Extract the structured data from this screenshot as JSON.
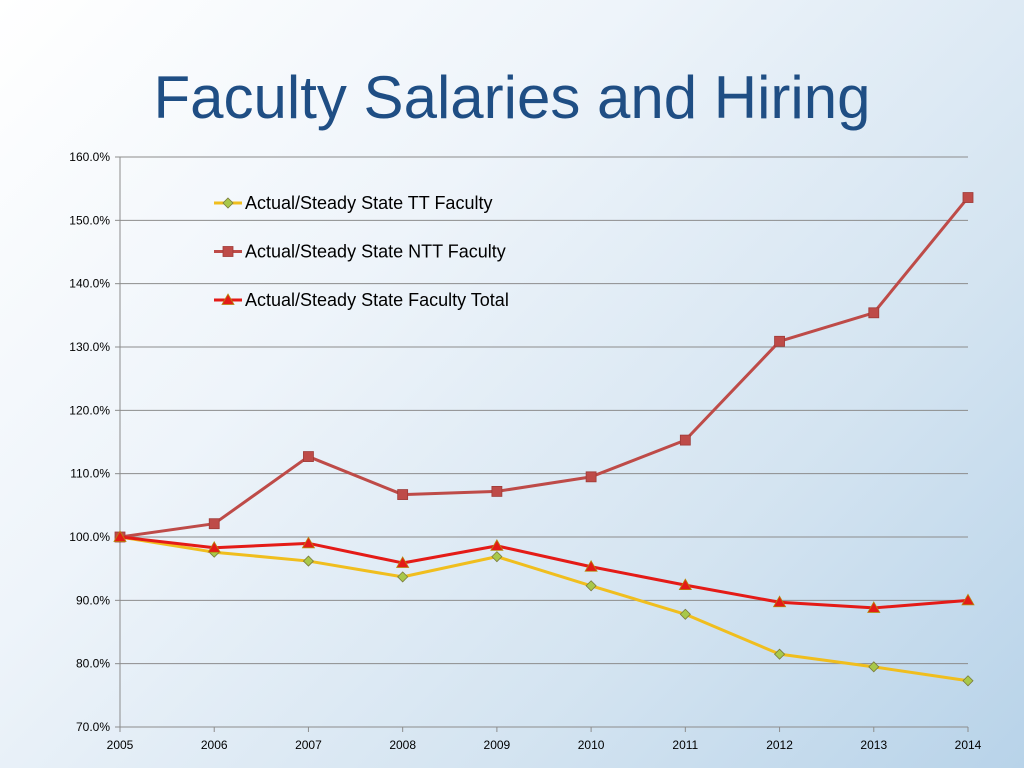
{
  "slide": {
    "title": "Faculty Salaries and Hiring"
  },
  "chart_data": {
    "type": "line",
    "title": "",
    "xlabel": "",
    "ylabel": "",
    "x": [
      "2005",
      "2006",
      "2007",
      "2008",
      "2009",
      "2010",
      "2011",
      "2012",
      "2013",
      "2014"
    ],
    "ylim": [
      70,
      160
    ],
    "y_ticks": [
      70,
      80,
      90,
      100,
      110,
      120,
      130,
      140,
      150,
      160
    ],
    "y_tick_labels": [
      "70.0%",
      "80.0%",
      "90.0%",
      "100.0%",
      "110.0%",
      "120.0%",
      "130.0%",
      "140.0%",
      "150.0%",
      "160.0%"
    ],
    "grid": true,
    "legend_position": "top-left-inside",
    "series": [
      {
        "name": "Actual/Steady State TT Faculty",
        "color": "#f0be1e",
        "marker": "diamond",
        "marker_fill": "#a8c84a",
        "values": [
          100.0,
          97.6,
          96.2,
          93.7,
          96.9,
          92.3,
          87.8,
          81.5,
          79.5,
          77.3
        ]
      },
      {
        "name": "Actual/Steady State NTT Faculty",
        "color": "#be4b48",
        "marker": "square",
        "marker_fill": "#be4b48",
        "values": [
          100.0,
          102.1,
          112.7,
          106.7,
          107.2,
          109.5,
          115.3,
          130.9,
          135.4,
          153.6
        ]
      },
      {
        "name": "Actual/Steady State Faculty Total",
        "color": "#e41b17",
        "marker": "triangle",
        "marker_fill": "#e41b17",
        "values": [
          100.0,
          98.3,
          99.0,
          95.9,
          98.6,
          95.3,
          92.4,
          89.7,
          88.8,
          90.0
        ]
      }
    ]
  }
}
